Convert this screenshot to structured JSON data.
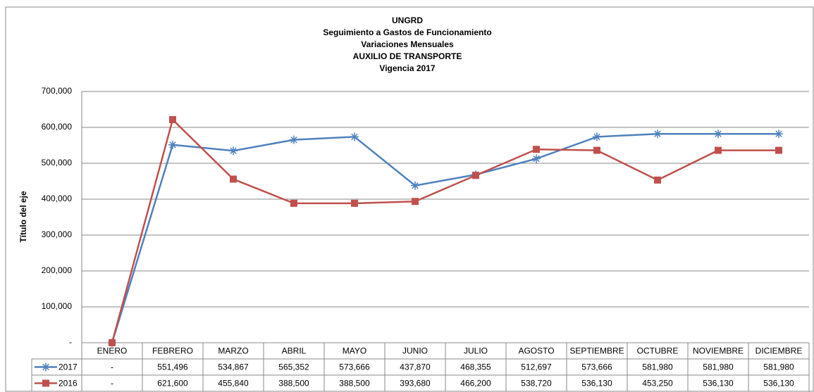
{
  "chart_data": {
    "type": "line",
    "title": "UNGRD",
    "subtitle": [
      "Seguimiento a Gastos de Funcionamiento",
      "Variaciones Mensuales",
      "AUXILIO DE TRANSPORTE",
      "Vigencia 2017"
    ],
    "y_label": "Título del eje",
    "categories": [
      "ENERO",
      "FEBRERO",
      "MARZO",
      "ABRIL",
      "MAYO",
      "JUNIO",
      "JULIO",
      "AGOSTO",
      "SEPTIEMBRE",
      "OCTUBRE",
      "NOVIEMBRE",
      "DICIEMBRE"
    ],
    "series": [
      {
        "name": "2017",
        "color": "#4f81bd",
        "marker": "star",
        "values": [
          0,
          551496,
          534867,
          565352,
          573666,
          437870,
          468355,
          512697,
          573666,
          581980,
          581980,
          581980
        ],
        "value_labels": [
          "-",
          "551,496",
          "534,867",
          "565,352",
          "573,666",
          "437,870",
          "468,355",
          "512,697",
          "573,666",
          "581,980",
          "581,980",
          "581,980"
        ]
      },
      {
        "name": "2016",
        "color": "#c0504d",
        "marker": "square",
        "values": [
          0,
          621600,
          455840,
          388500,
          388500,
          393680,
          466200,
          538720,
          536130,
          453250,
          536130,
          536130
        ],
        "value_labels": [
          "-",
          "621,600",
          "455,840",
          "388,500",
          "388,500",
          "393,680",
          "466,200",
          "538,720",
          "536,130",
          "453,250",
          "536,130",
          "536,130"
        ]
      }
    ],
    "ylim": [
      0,
      700000
    ],
    "yticks": [
      {
        "value": 0,
        "label": "-"
      },
      {
        "value": 100000,
        "label": "100,000"
      },
      {
        "value": 200000,
        "label": "200,000"
      },
      {
        "value": 300000,
        "label": "300,000"
      },
      {
        "value": 400000,
        "label": "400,000"
      },
      {
        "value": 500000,
        "label": "500,000"
      },
      {
        "value": 600000,
        "label": "600,000"
      },
      {
        "value": 700000,
        "label": "700,000"
      }
    ],
    "grid": true,
    "data_table": true
  }
}
